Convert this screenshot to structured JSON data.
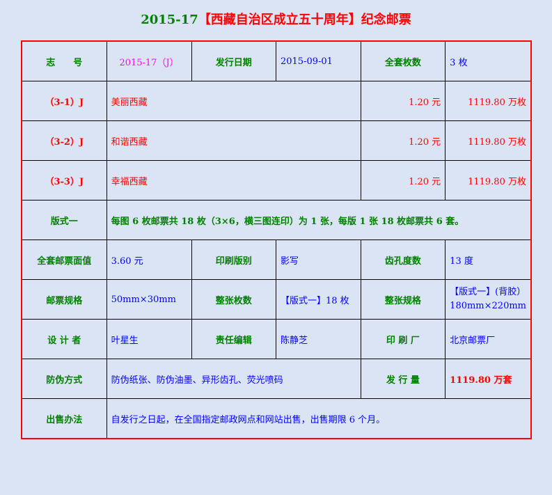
{
  "title": {
    "code": "2015-17",
    "name": "【西藏自治区成立五十周年】纪念邮票"
  },
  "row1": {
    "l1": "志　　号",
    "v1": "2015-17（J）",
    "l2": "发行日期",
    "v2": "2015-09-01",
    "l3": "全套枚数",
    "v3": "3 枚"
  },
  "stamps": [
    {
      "code": "（3-1）J",
      "name": "美丽西藏",
      "price": "1.20 元",
      "qty": "1119.80 万枚"
    },
    {
      "code": "（3-2）J",
      "name": "和谐西藏",
      "price": "1.20 元",
      "qty": "1119.80 万枚"
    },
    {
      "code": "（3-3）J",
      "name": "幸福西藏",
      "price": "1.20 元",
      "qty": "1119.80 万枚"
    }
  ],
  "format": {
    "l": "版式一",
    "v": "每图 6 枚邮票共 18 枚（3×6，横三图连印）为 1 张，每版 1 张 18 枚邮票共 6 套。"
  },
  "row6": {
    "l1": "全套邮票面值",
    "v1": "3.60 元",
    "l2": "印刷版别",
    "v2": "影写",
    "l3": "齿孔度数",
    "v3": "13 度"
  },
  "row7": {
    "l1": "邮票规格",
    "v1": "50mm×30mm",
    "l2": "整张枚数",
    "v2": "【版式一】18 枚",
    "l3": "整张规格",
    "v3a": "【版式一】(背胶）",
    "v3b": "180mm×220mm"
  },
  "row8": {
    "l1": "设 计 者",
    "v1": "叶星生",
    "l2": "责任编辑",
    "v2": "陈静芝",
    "l3": "印 刷 厂",
    "v3": "北京邮票厂"
  },
  "row9": {
    "l1": "防伪方式",
    "v1": "防伪纸张、防伪油墨、异形齿孔、荧光喷码",
    "l2": "发 行 量",
    "v2": "1119.80 万套"
  },
  "row10": {
    "l": "出售办法",
    "v": "自发行之日起，在全国指定邮政网点和网站出售，出售期限 6 个月。"
  }
}
